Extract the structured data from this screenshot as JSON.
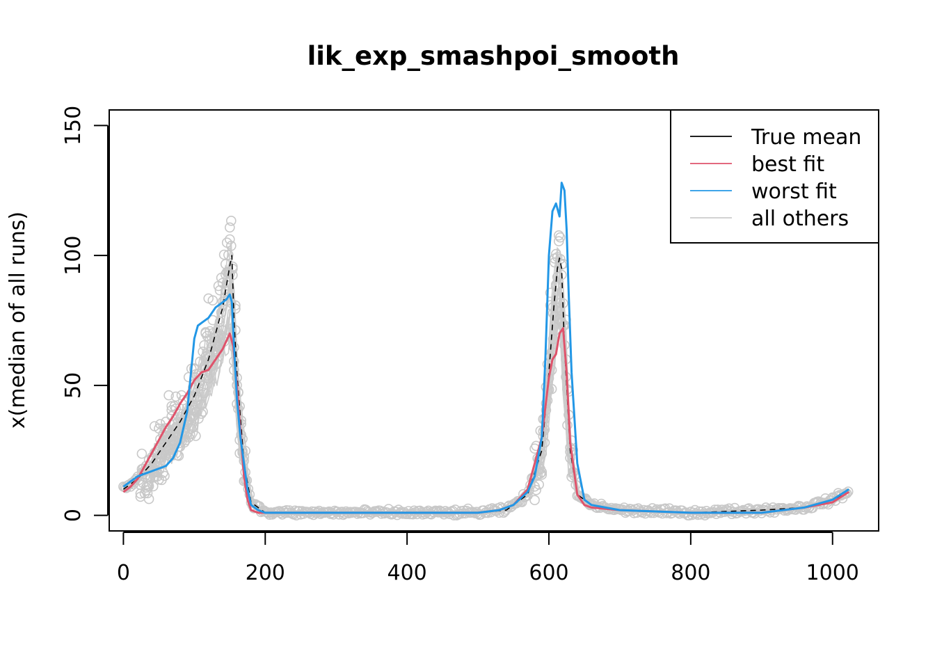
{
  "chart_data": {
    "type": "line",
    "title": "lik_exp_smashpoi_smooth",
    "xlabel": "",
    "ylabel": "x(median of all runs)",
    "xlim": [
      -20,
      1065
    ],
    "ylim": [
      -6,
      156
    ],
    "xticks": [
      "0",
      "200",
      "400",
      "600",
      "800",
      "1000"
    ],
    "yticks": [
      "0",
      "50",
      "100",
      "150"
    ],
    "legend": {
      "placement": "top-right",
      "entries": [
        "True mean",
        "best fit",
        "worst fit",
        "all others"
      ]
    },
    "colors": {
      "true_mean": "#000000",
      "best_fit": "#df536b",
      "worst_fit": "#2297e6",
      "all_others": "#cccccc",
      "points": "#c8c8c8"
    },
    "series": [
      {
        "name": "True mean",
        "x": [
          0,
          20,
          40,
          60,
          80,
          100,
          120,
          130,
          140,
          145,
          150,
          153,
          156,
          160,
          170,
          180,
          200,
          300,
          400,
          500,
          540,
          570,
          590,
          600,
          607,
          612,
          615,
          618,
          622,
          630,
          640,
          660,
          700,
          800,
          900,
          960,
          1000,
          1023
        ],
        "y": [
          10,
          14,
          20,
          28,
          36,
          46,
          60,
          70,
          80,
          88,
          96,
          100,
          75,
          55,
          20,
          5,
          1,
          1,
          1,
          1,
          2,
          8,
          25,
          55,
          80,
          95,
          99,
          95,
          65,
          25,
          8,
          4,
          2,
          1,
          2,
          3,
          6,
          9
        ]
      },
      {
        "name": "best fit",
        "x": [
          0,
          10,
          20,
          30,
          40,
          50,
          60,
          70,
          80,
          90,
          100,
          110,
          120,
          130,
          140,
          150,
          155,
          160,
          165,
          170,
          175,
          180,
          190,
          200,
          300,
          400,
          500,
          530,
          550,
          570,
          590,
          600,
          605,
          610,
          615,
          620,
          625,
          630,
          640,
          650,
          660,
          700,
          800,
          900,
          960,
          1000,
          1023
        ],
        "y": [
          9,
          11,
          14,
          19,
          24,
          29,
          34,
          38,
          43,
          47,
          52,
          55,
          56,
          60,
          64,
          70,
          65,
          50,
          32,
          15,
          6,
          2,
          1,
          1,
          1,
          1,
          1,
          2,
          4,
          10,
          30,
          53,
          60,
          62,
          70,
          72,
          55,
          28,
          8,
          4,
          3,
          2,
          1,
          1,
          3,
          5,
          9
        ]
      },
      {
        "name": "worst fit",
        "x": [
          0,
          10,
          20,
          30,
          40,
          50,
          60,
          70,
          80,
          90,
          100,
          105,
          110,
          120,
          125,
          130,
          135,
          140,
          145,
          150,
          153,
          156,
          160,
          165,
          170,
          175,
          180,
          190,
          200,
          300,
          400,
          500,
          530,
          550,
          570,
          580,
          590,
          595,
          600,
          605,
          610,
          615,
          618,
          622,
          625,
          628,
          632,
          640,
          650,
          660,
          680,
          700,
          800,
          900,
          960,
          1000,
          1023
        ],
        "y": [
          11,
          13,
          15,
          16,
          17,
          18,
          19,
          22,
          28,
          40,
          68,
          73,
          74,
          76,
          78,
          80,
          81,
          82,
          83,
          85,
          82,
          65,
          45,
          30,
          20,
          10,
          4,
          2,
          1,
          1,
          1,
          1,
          2,
          4,
          9,
          15,
          30,
          60,
          100,
          117,
          120,
          115,
          128,
          125,
          110,
          85,
          55,
          20,
          6,
          4,
          3,
          2,
          1,
          1,
          3,
          6,
          10
        ]
      }
    ]
  }
}
